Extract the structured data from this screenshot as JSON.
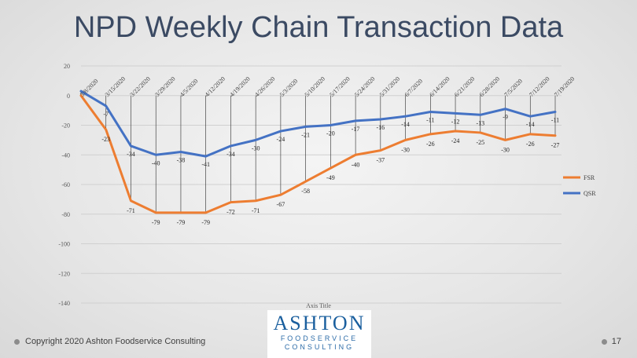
{
  "slide": {
    "title": "NPD Weekly Chain Transaction Data",
    "footer": "Copyright 2020 Ashton Foodservice Consulting",
    "page_number": "17",
    "logo_main": "ASHTON",
    "logo_sub_1": "FOODSERVICE",
    "logo_sub_2": "CONSULTING"
  },
  "chart_data": {
    "type": "line",
    "title": "",
    "xlabel": "Axis Title",
    "ylabel": "",
    "ylim": [
      -140,
      20
    ],
    "yticks": [
      20,
      0,
      -20,
      -40,
      -60,
      -80,
      -100,
      -120,
      -140
    ],
    "grid": true,
    "legend_position": "right",
    "categories": [
      "3/8/2020",
      "3/15/2020",
      "3/22/2020",
      "3/29/2020",
      "4/5/2020",
      "4/12/2020",
      "4/19/2020",
      "4/26/2020",
      "5/3/2020",
      "5/10/2020",
      "5/17/2020",
      "5/24/2020",
      "5/31/2020",
      "6/7/2020",
      "6/14/2020",
      "6/21/2020",
      "6/28/2020",
      "7/5/2020",
      "7/12/2020",
      "7/19/2020"
    ],
    "series": [
      {
        "name": "FSR",
        "color": "#ed7d31",
        "values": [
          0,
          -23,
          -71,
          -79,
          -79,
          -79,
          -72,
          -71,
          -67,
          -58,
          -49,
          -40,
          -37,
          -30,
          -26,
          -24,
          -25,
          -30,
          -26,
          -27
        ],
        "labels": [
          "0",
          "-23",
          "-71",
          "-79",
          "-79",
          "-79",
          "-72",
          "-71",
          "-67",
          "-58",
          "-49",
          "-40",
          "-37",
          "-30",
          "-26",
          "-24",
          "-25",
          "-30",
          "-26",
          "-27"
        ]
      },
      {
        "name": "QSR",
        "color": "#4472c4",
        "values": [
          3,
          -7,
          -34,
          -40,
          -38,
          -41,
          -34,
          -30,
          -24,
          -21,
          -20,
          -17,
          -16,
          -14,
          -11,
          -12,
          -13,
          -9,
          -14,
          -11
        ],
        "labels": [
          "3",
          "-7",
          "-34",
          "-40",
          "-38",
          "-41",
          "-34",
          "-30",
          "-24",
          "-21",
          "-20",
          "-17",
          "-16",
          "-14",
          "-11",
          "-12",
          "-13",
          "-9",
          "-14",
          "-11"
        ]
      }
    ]
  }
}
